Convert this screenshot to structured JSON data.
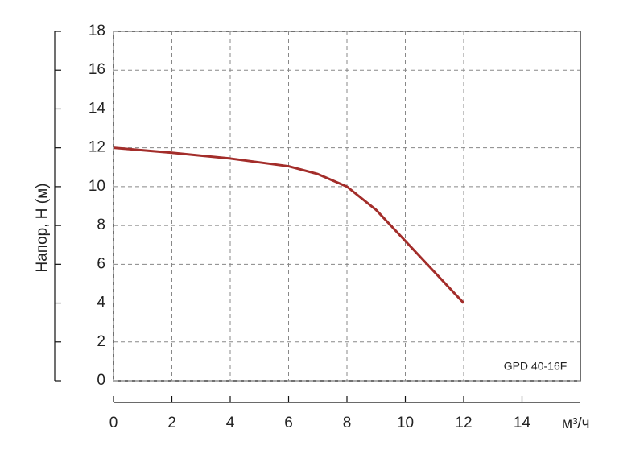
{
  "chart_data": {
    "type": "line",
    "x": [
      0,
      2,
      4,
      6,
      7,
      8,
      9,
      10,
      11,
      12
    ],
    "series": [
      {
        "name": "GPD 40-16F",
        "color": "#a32d2a",
        "values": [
          12,
          11.75,
          11.45,
          11.05,
          10.65,
          10,
          8.8,
          7.2,
          5.6,
          4
        ]
      }
    ],
    "xlabel": "м³/ч",
    "ylabel": "Напор, Н (м)",
    "xlim": [
      0,
      16
    ],
    "xticks": [
      0,
      2,
      4,
      6,
      8,
      10,
      12,
      14
    ],
    "ylim": [
      0,
      18
    ],
    "yticks": [
      0,
      2,
      4,
      6,
      8,
      10,
      12,
      14,
      16,
      18
    ],
    "grid": true
  }
}
